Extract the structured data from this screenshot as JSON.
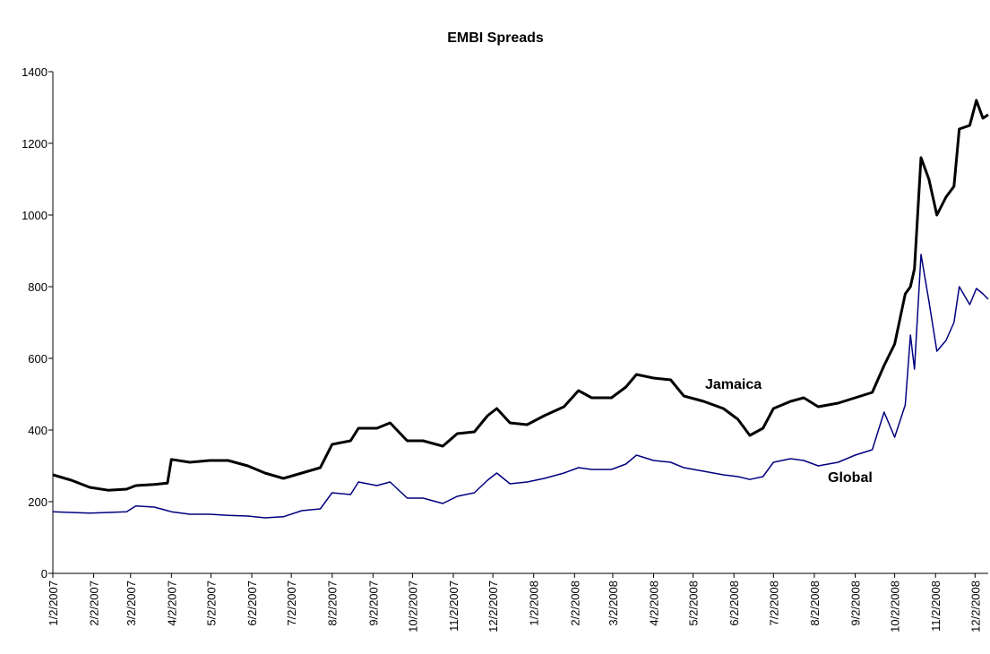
{
  "chart_data": {
    "type": "line",
    "title": "EMBI Spreads",
    "x": [
      "1/2/2007",
      "1/16/2007",
      "1/30/2007",
      "2/13/2007",
      "2/27/2007",
      "3/6/2007",
      "3/20/2007",
      "3/30/2007",
      "4/2/2007",
      "4/16/2007",
      "5/1/2007",
      "5/15/2007",
      "5/30/2007",
      "6/12/2007",
      "6/26/2007",
      "7/10/2007",
      "7/24/2007",
      "8/2/2007",
      "8/16/2007",
      "8/22/2007",
      "9/5/2007",
      "9/15/2007",
      "9/28/2007",
      "10/10/2007",
      "10/25/2007",
      "11/5/2007",
      "11/18/2007",
      "11/28/2007",
      "12/5/2007",
      "12/15/2007",
      "12/28/2007",
      "1/10/2008",
      "1/25/2008",
      "2/5/2008",
      "2/15/2008",
      "3/1/2008",
      "3/12/2008",
      "3/20/2008",
      "4/2/2008",
      "4/15/2008",
      "4/25/2008",
      "5/10/2008",
      "5/25/2008",
      "6/5/2008",
      "6/14/2008",
      "6/24/2008",
      "7/2/2008",
      "7/15/2008",
      "7/25/2008",
      "8/5/2008",
      "8/20/2008",
      "9/2/2008",
      "9/15/2008",
      "9/24/2008",
      "10/2/2008",
      "10/10/2008",
      "10/14/2008",
      "10/17/2008",
      "10/22/2008",
      "10/28/2008",
      "11/3/2008",
      "11/10/2008",
      "11/16/2008",
      "11/20/2008",
      "11/28/2008",
      "12/3/2008",
      "12/8/2008",
      "12/12/2008"
    ],
    "series": [
      {
        "name": "Jamaica",
        "color": "#000000",
        "values": [
          275,
          260,
          240,
          232,
          235,
          245,
          248,
          252,
          318,
          310,
          315,
          315,
          300,
          280,
          265,
          280,
          295,
          360,
          370,
          405,
          405,
          420,
          370,
          370,
          355,
          390,
          395,
          440,
          460,
          420,
          415,
          440,
          465,
          510,
          490,
          490,
          520,
          555,
          545,
          540,
          495,
          480,
          460,
          430,
          385,
          405,
          460,
          480,
          490,
          465,
          475,
          490,
          505,
          580,
          640,
          780,
          800,
          850,
          1160,
          1100,
          1000,
          1050,
          1080,
          1240,
          1250,
          1320,
          1270,
          1280
        ]
      },
      {
        "name": "Global",
        "color": "#000080",
        "values": [
          172,
          170,
          168,
          170,
          172,
          188,
          185,
          175,
          172,
          165,
          165,
          162,
          160,
          155,
          158,
          175,
          180,
          225,
          220,
          255,
          245,
          255,
          210,
          210,
          195,
          215,
          225,
          260,
          280,
          250,
          255,
          265,
          280,
          295,
          290,
          290,
          305,
          330,
          315,
          310,
          295,
          285,
          275,
          270,
          262,
          270,
          310,
          320,
          315,
          300,
          310,
          330,
          345,
          450,
          380,
          470,
          665,
          570,
          890,
          760,
          620,
          650,
          700,
          800,
          750,
          795,
          780,
          765
        ]
      }
    ],
    "xlim": [
      "1/2/2007",
      "12/12/2008"
    ],
    "xticks": [
      "1/2/2007",
      "2/2/2007",
      "3/2/2007",
      "4/2/2007",
      "5/2/2007",
      "6/2/2007",
      "7/2/2007",
      "8/2/2007",
      "9/2/2007",
      "10/2/2007",
      "11/2/2007",
      "12/2/2007",
      "1/2/2008",
      "2/2/2008",
      "3/2/2008",
      "4/2/2008",
      "5/2/2008",
      "6/2/2008",
      "7/2/2008",
      "8/2/2008",
      "9/2/2008",
      "10/2/2008",
      "11/2/2008",
      "12/2/2008"
    ],
    "ylim": [
      0,
      1400
    ],
    "yticks": [
      0,
      200,
      400,
      600,
      800,
      1000,
      1200,
      1400
    ],
    "grid": false
  }
}
